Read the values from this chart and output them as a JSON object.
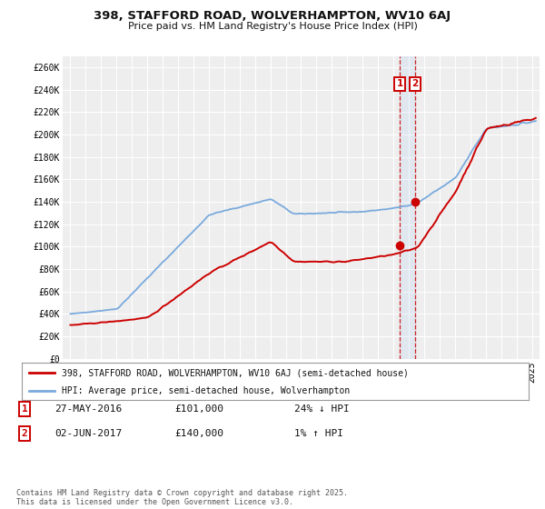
{
  "title": "398, STAFFORD ROAD, WOLVERHAMPTON, WV10 6AJ",
  "subtitle": "Price paid vs. HM Land Registry's House Price Index (HPI)",
  "red_line_label": "398, STAFFORD ROAD, WOLVERHAMPTON, WV10 6AJ (semi-detached house)",
  "blue_line_label": "HPI: Average price, semi-detached house, Wolverhampton",
  "red_color": "#cc0000",
  "blue_color": "#7aaadd",
  "point1_date": "27-MAY-2016",
  "point1_price": 101000,
  "point1_hpi_diff": "24% ↓ HPI",
  "point2_date": "02-JUN-2017",
  "point2_price": 140000,
  "point2_hpi_diff": "1% ↑ HPI",
  "point1_x": 2016.41,
  "point2_x": 2017.42,
  "ylim": [
    0,
    270000
  ],
  "xlim": [
    1994.5,
    2025.5
  ],
  "footer": "Contains HM Land Registry data © Crown copyright and database right 2025.\nThis data is licensed under the Open Government Licence v3.0.",
  "bg_color": "#eeeeee",
  "grid_color": "#ffffff",
  "yticks": [
    0,
    20000,
    40000,
    60000,
    80000,
    100000,
    120000,
    140000,
    160000,
    180000,
    200000,
    220000,
    240000,
    260000
  ],
  "ytick_labels": [
    "£0",
    "£20K",
    "£40K",
    "£60K",
    "£80K",
    "£100K",
    "£120K",
    "£140K",
    "£160K",
    "£180K",
    "£200K",
    "£220K",
    "£240K",
    "£260K"
  ]
}
